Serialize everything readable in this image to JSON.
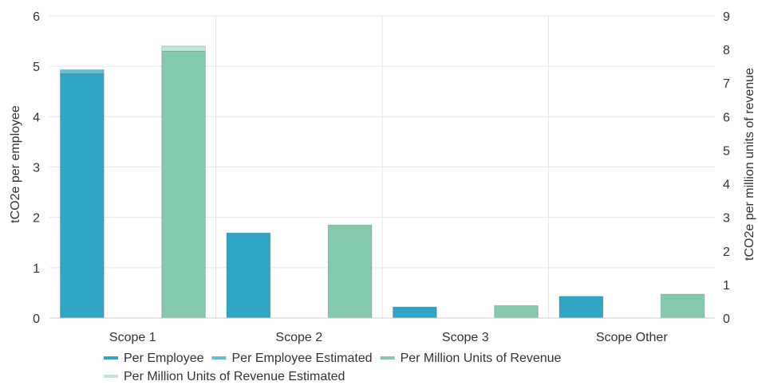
{
  "chart_data": {
    "type": "bar",
    "categories": [
      "Scope 1",
      "Scope 2",
      "Scope 3",
      "Scope Other"
    ],
    "y_left": {
      "label": "tCO2e per employee",
      "range": [
        0,
        6
      ],
      "ticks": [
        0,
        1,
        2,
        3,
        4,
        5,
        6
      ]
    },
    "y_right": {
      "label": "tCO2e per million units of revenue",
      "range": [
        0,
        9
      ],
      "ticks": [
        0,
        1,
        2,
        3,
        4,
        5,
        6,
        7,
        8,
        9
      ]
    },
    "series": [
      {
        "name": "Per Employee",
        "axis": "left",
        "group": "employee",
        "values": [
          4.85,
          1.69,
          0.22,
          0.43
        ],
        "color": "#31a5c5"
      },
      {
        "name": "Per Employee Estimated",
        "axis": "left",
        "group": "employee",
        "values": [
          0.08,
          0,
          0,
          0
        ],
        "color": "#62c0d8"
      },
      {
        "name": "Per Million Units of Revenue",
        "axis": "right",
        "group": "revenue",
        "values": [
          7.95,
          2.77,
          0.37,
          0.71
        ],
        "color": "#84c9ab"
      },
      {
        "name": "Per Million Units of Revenue Estimated",
        "axis": "right",
        "group": "revenue",
        "values": [
          0.15,
          0,
          0,
          0
        ],
        "color": "#c5e7d7"
      }
    ],
    "grid": true,
    "legend_position": "bottom"
  }
}
